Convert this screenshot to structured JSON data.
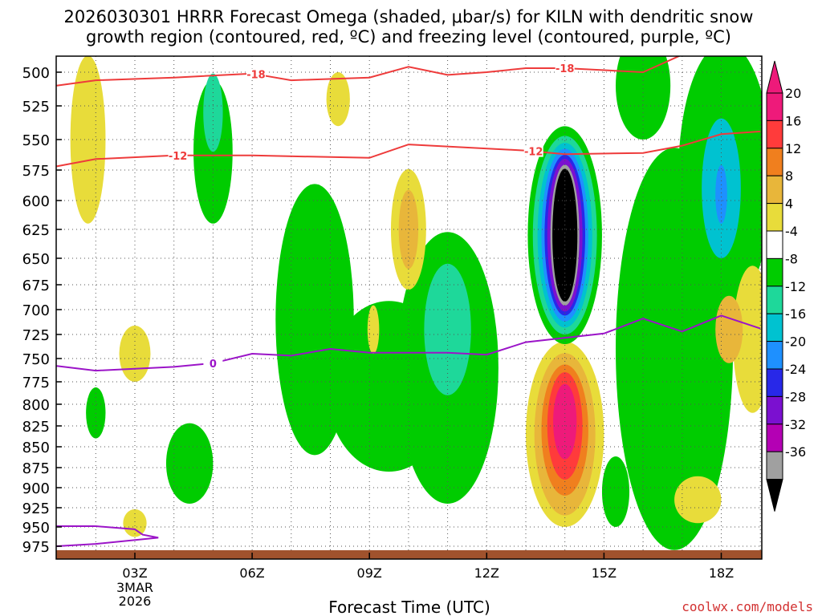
{
  "chart_data": {
    "type": "contour",
    "title_line1": "2026030301 HRRR Forecast Omega (shaded, μbar/s) for KILN with dendritic snow",
    "title_line2": "growth region (contoured, red, ºC) and freezing level (contoured, purple, ºC)",
    "xlabel": "Forecast Time (UTC)",
    "watermark": "coolwx.com/models",
    "x_hours_range": [
      1,
      19
    ],
    "y_range_mb": [
      975,
      480
    ],
    "y_ticks": [
      500,
      525,
      550,
      575,
      600,
      625,
      650,
      675,
      700,
      725,
      750,
      775,
      800,
      825,
      850,
      875,
      900,
      925,
      950,
      975
    ],
    "x_ticks": [
      {
        "hour": 3,
        "label": "03Z",
        "sub1": "3MAR",
        "sub2": "2026"
      },
      {
        "hour": 6,
        "label": "06Z",
        "sub1": "",
        "sub2": ""
      },
      {
        "hour": 9,
        "label": "09Z",
        "sub1": "",
        "sub2": ""
      },
      {
        "hour": 12,
        "label": "12Z",
        "sub1": "",
        "sub2": ""
      },
      {
        "hour": 15,
        "label": "15Z",
        "sub1": "",
        "sub2": ""
      },
      {
        "hour": 18,
        "label": "18Z",
        "sub1": "",
        "sub2": ""
      }
    ],
    "colorbar": {
      "labels": [
        "20",
        "16",
        "12",
        "8",
        "4",
        "-4",
        "-8",
        "-12",
        "-16",
        "-20",
        "-24",
        "-28",
        "-32",
        "-36"
      ],
      "bins": [
        {
          "label": "20",
          "color": "#ee1a7a"
        },
        {
          "label": "16",
          "color": "#ff3b3b"
        },
        {
          "label": "12",
          "color": "#f07f1e"
        },
        {
          "label": "8",
          "color": "#e8b63a"
        },
        {
          "label": "4",
          "color": "#e8dc3a"
        },
        {
          "label": "-4",
          "color": "#ffffff"
        },
        {
          "label": "-8",
          "color": "#00cc00"
        },
        {
          "label": "-12",
          "color": "#1ed89a"
        },
        {
          "label": "-16",
          "color": "#00c2d0"
        },
        {
          "label": "-20",
          "color": "#1e90ff"
        },
        {
          "label": "-24",
          "color": "#2828e8"
        },
        {
          "label": "-28",
          "color": "#7b10d0"
        },
        {
          "label": "-32",
          "color": "#b400b4"
        },
        {
          "label": "-36",
          "color": "#a0a0a0"
        },
        {
          "label": "",
          "color": "#000000"
        }
      ],
      "top_arrow_color": "#ee1a7a",
      "bottom_arrow_color": "#000000"
    },
    "contours": [
      {
        "name": "-18C isotherm",
        "label": "-18",
        "color": "#ee3b3b",
        "points": [
          [
            1.0,
            510
          ],
          [
            2.0,
            506
          ],
          [
            4.0,
            504
          ],
          [
            6.0,
            501
          ],
          [
            7.0,
            506
          ],
          [
            9.0,
            504
          ],
          [
            10.0,
            496
          ],
          [
            11.0,
            502
          ],
          [
            12.0,
            500
          ],
          [
            13.0,
            497
          ],
          [
            14.0,
            497
          ],
          [
            16.0,
            500
          ],
          [
            17.0,
            487
          ],
          [
            18.0,
            476
          ]
        ]
      },
      {
        "name": "-12C isotherm",
        "label": "-12",
        "color": "#ee3b3b",
        "points": [
          [
            1.0,
            572
          ],
          [
            2.0,
            566
          ],
          [
            4.0,
            563
          ],
          [
            6.0,
            563
          ],
          [
            9.0,
            565
          ],
          [
            10.0,
            554
          ],
          [
            13.0,
            559
          ],
          [
            14.0,
            562
          ],
          [
            16.0,
            561
          ],
          [
            17.0,
            555
          ],
          [
            18.0,
            546
          ],
          [
            19.0,
            544
          ]
        ]
      },
      {
        "name": "0C freezing level",
        "label": "0",
        "color": "#9b14c8",
        "points": [
          [
            1.0,
            758
          ],
          [
            2.0,
            763
          ],
          [
            4.0,
            759
          ],
          [
            5.0,
            755
          ],
          [
            6.0,
            745
          ],
          [
            7.0,
            747
          ],
          [
            8.0,
            740
          ],
          [
            9.0,
            744
          ],
          [
            11.0,
            744
          ],
          [
            12.0,
            746
          ],
          [
            13.0,
            733
          ],
          [
            15.0,
            724
          ],
          [
            16.0,
            709
          ],
          [
            17.0,
            722
          ],
          [
            18.0,
            706
          ],
          [
            19.0,
            719
          ]
        ]
      },
      {
        "name": "0C freezing level (low)",
        "label": "",
        "color": "#9b14c8",
        "points": [
          [
            1.0,
            949
          ],
          [
            2.0,
            949
          ],
          [
            3.0,
            953
          ],
          [
            3.2,
            960
          ],
          [
            3.6,
            964
          ],
          [
            2.0,
            972
          ],
          [
            1.0,
            975
          ]
        ]
      }
    ],
    "omega_areas": [
      {
        "color": "#00cc00",
        "cx": 5.0,
        "cy": 560,
        "rx": 0.5,
        "ry": 60
      },
      {
        "color": "#1ed89a",
        "cx": 5.0,
        "cy": 530,
        "rx": 0.25,
        "ry": 30
      },
      {
        "color": "#00cc00",
        "cx": 7.6,
        "cy": 710,
        "rx": 1.0,
        "ry": 150
      },
      {
        "color": "#00cc00",
        "cx": 9.5,
        "cy": 780,
        "rx": 1.6,
        "ry": 100
      },
      {
        "color": "#00cc00",
        "cx": 11.0,
        "cy": 760,
        "rx": 1.3,
        "ry": 160
      },
      {
        "color": "#1ed89a",
        "cx": 11.0,
        "cy": 720,
        "rx": 0.6,
        "ry": 70
      },
      {
        "color": "#00cc00",
        "cx": 16.8,
        "cy": 740,
        "rx": 1.5,
        "ry": 240
      },
      {
        "color": "#00cc00",
        "cx": 18.1,
        "cy": 580,
        "rx": 1.2,
        "ry": 120
      },
      {
        "color": "#00c2d0",
        "cx": 18.0,
        "cy": 590,
        "rx": 0.5,
        "ry": 60
      },
      {
        "color": "#1e90ff",
        "cx": 18.0,
        "cy": 595,
        "rx": 0.15,
        "ry": 25
      },
      {
        "color": "#00cc00",
        "cx": 4.4,
        "cy": 870,
        "rx": 0.6,
        "ry": 50
      },
      {
        "color": "#00cc00",
        "cx": 2.0,
        "cy": 810,
        "rx": 0.25,
        "ry": 30
      },
      {
        "color": "#00cc00",
        "cx": 15.3,
        "cy": 905,
        "rx": 0.35,
        "ry": 45
      },
      {
        "color": "#00cc00",
        "cx": 16.0,
        "cy": 510,
        "rx": 0.7,
        "ry": 40
      },
      {
        "color": "#e8dc3a",
        "cx": 1.8,
        "cy": 550,
        "rx": 0.45,
        "ry": 70
      },
      {
        "color": "#e8dc3a",
        "cx": 3.0,
        "cy": 745,
        "rx": 0.4,
        "ry": 30
      },
      {
        "color": "#e8dc3a",
        "cx": 3.0,
        "cy": 945,
        "rx": 0.3,
        "ry": 18
      },
      {
        "color": "#e8dc3a",
        "cx": 9.1,
        "cy": 720,
        "rx": 0.15,
        "ry": 25
      },
      {
        "color": "#e8dc3a",
        "cx": 10.0,
        "cy": 625,
        "rx": 0.45,
        "ry": 55
      },
      {
        "color": "#e8b63a",
        "cx": 10.0,
        "cy": 625,
        "rx": 0.25,
        "ry": 35
      },
      {
        "color": "#e8dc3a",
        "cx": 8.2,
        "cy": 520,
        "rx": 0.3,
        "ry": 20
      },
      {
        "color": "#e8dc3a",
        "cx": 17.4,
        "cy": 915,
        "rx": 0.6,
        "ry": 30
      },
      {
        "color": "#e8dc3a",
        "cx": 18.8,
        "cy": 730,
        "rx": 0.5,
        "ry": 80
      },
      {
        "color": "#e8b63a",
        "cx": 18.2,
        "cy": 720,
        "rx": 0.35,
        "ry": 35
      },
      {
        "color": "#e8dc3a",
        "cx": 14.0,
        "cy": 835,
        "rx": 1.0,
        "ry": 115
      },
      {
        "color": "#e8b63a",
        "cx": 14.0,
        "cy": 835,
        "rx": 0.78,
        "ry": 100
      },
      {
        "color": "#f07f1e",
        "cx": 14.0,
        "cy": 830,
        "rx": 0.6,
        "ry": 80
      },
      {
        "color": "#ff3b3b",
        "cx": 14.0,
        "cy": 825,
        "rx": 0.45,
        "ry": 65
      },
      {
        "color": "#ee1a7a",
        "cx": 14.0,
        "cy": 820,
        "rx": 0.3,
        "ry": 45
      },
      {
        "color": "#00cc00",
        "cx": 14.0,
        "cy": 630,
        "rx": 0.95,
        "ry": 105
      },
      {
        "color": "#1ed89a",
        "cx": 14.0,
        "cy": 630,
        "rx": 0.82,
        "ry": 95
      },
      {
        "color": "#00c2d0",
        "cx": 14.0,
        "cy": 630,
        "rx": 0.7,
        "ry": 88
      },
      {
        "color": "#1e90ff",
        "cx": 14.0,
        "cy": 630,
        "rx": 0.6,
        "ry": 82
      },
      {
        "color": "#2828e8",
        "cx": 14.0,
        "cy": 630,
        "rx": 0.52,
        "ry": 76
      },
      {
        "color": "#7b10d0",
        "cx": 14.0,
        "cy": 630,
        "rx": 0.45,
        "ry": 72
      },
      {
        "color": "#a0a0a0",
        "cx": 14.0,
        "cy": 630,
        "rx": 0.37,
        "ry": 66
      },
      {
        "color": "#000000",
        "cx": 14.0,
        "cy": 630,
        "rx": 0.32,
        "ry": 62
      }
    ],
    "terrain_color": "#a0522d"
  }
}
